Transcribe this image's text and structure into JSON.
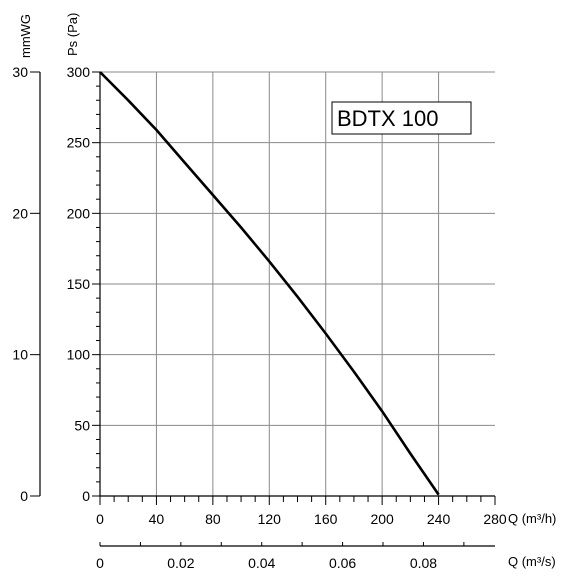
{
  "chart_data": {
    "type": "line",
    "title": "BDTX 100",
    "x": {
      "label": "Q (m³/h)",
      "ticks": [
        0,
        40,
        80,
        120,
        160,
        200,
        240,
        280
      ],
      "range": [
        0,
        280
      ]
    },
    "x2": {
      "label": "Q (m³/s)",
      "ticks": [
        "0",
        "0.02",
        "0.04",
        "0.06",
        "0.08"
      ],
      "tick_values": [
        0,
        0.02,
        0.04,
        0.06,
        0.08
      ],
      "range": [
        0,
        0.0977
      ]
    },
    "y": {
      "label": "Ps (Pa)",
      "ticks": [
        0,
        50,
        100,
        150,
        200,
        250,
        300
      ],
      "range": [
        0,
        300
      ]
    },
    "y2": {
      "label": "mmWG",
      "ticks": [
        "0",
        "10",
        "20",
        "30"
      ],
      "tick_values": [
        0,
        10,
        20,
        30
      ],
      "range": [
        0,
        30
      ]
    },
    "grid": true,
    "series": [
      {
        "x": [
          0,
          20,
          40,
          60,
          80,
          100,
          120,
          140,
          160,
          180,
          200,
          220,
          240
        ],
        "y": [
          300,
          280,
          259,
          236,
          213,
          190,
          166,
          141,
          115,
          88,
          60,
          30,
          1
        ]
      }
    ]
  }
}
